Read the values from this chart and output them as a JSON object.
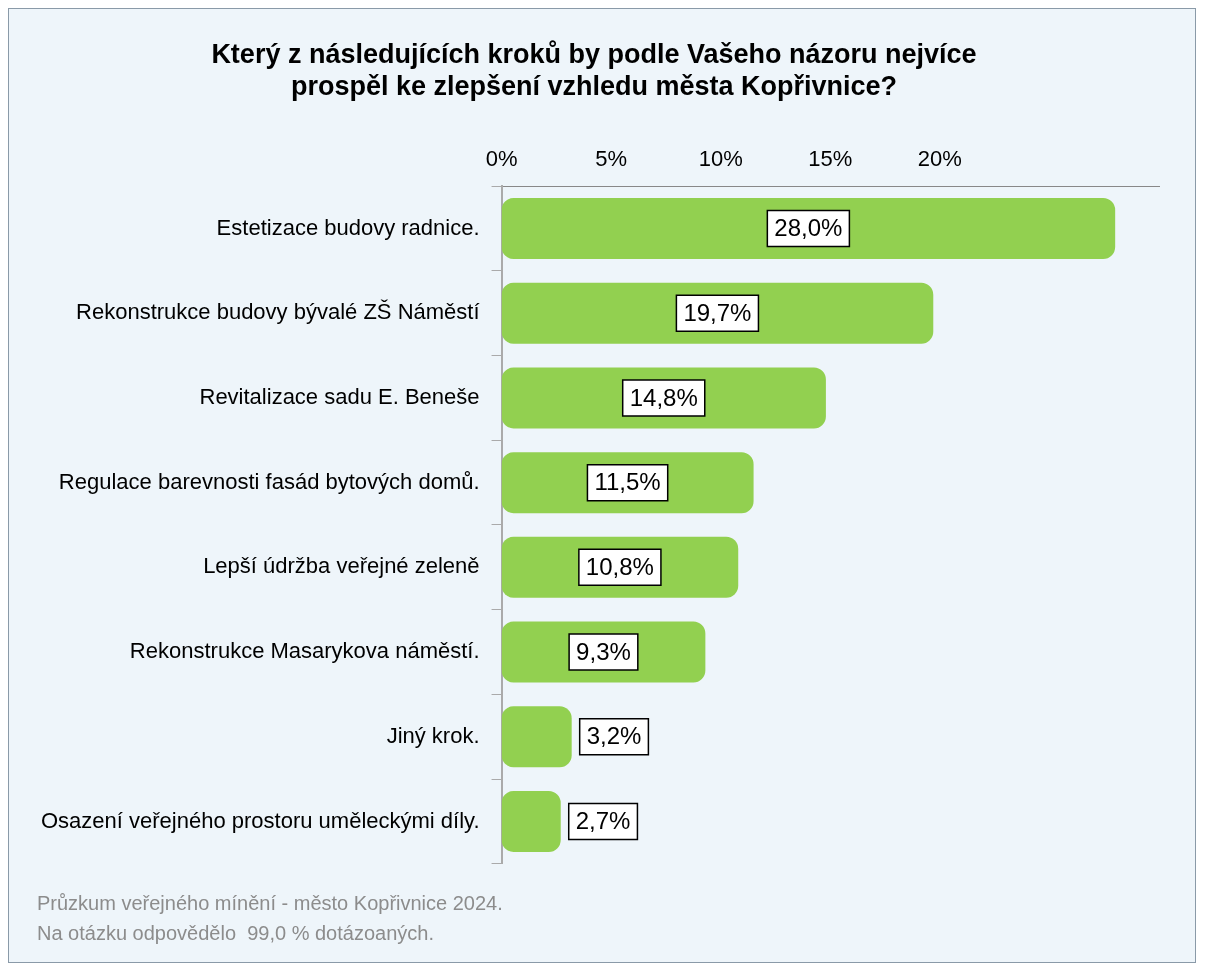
{
  "chart_data": {
    "type": "bar",
    "orientation": "horizontal",
    "title": [
      "Který z následujících kroků by podle Vašeho názoru nejvíce",
      "prospěl ke zlepšení vzhledu města Kopřivnice?"
    ],
    "categories": [
      "Estetizace budovy radnice.",
      "Rekonstrukce budovy bývalé ZŠ Náměstí",
      "Revitalizace sadu E. Beneše",
      "Regulace barevnosti fasád bytových domů.",
      "Lepší údržba veřejné zeleně",
      "Rekonstrukce Masarykova náměstí.",
      "Jiný krok.",
      "Osazení veřejného prostoru uměleckými díly."
    ],
    "values": [
      28.0,
      19.7,
      14.8,
      11.5,
      10.8,
      9.3,
      3.2,
      2.7
    ],
    "value_labels": [
      "28,0%",
      "19,7%",
      "14,8%",
      "11,5%",
      "10,8%",
      "9,3%",
      "3,2%",
      "2,7%"
    ],
    "color": "#92d050",
    "xlim": [
      0,
      30
    ],
    "xticks": [
      {
        "value": 0,
        "label": "0%"
      },
      {
        "value": 5,
        "label": "5%"
      },
      {
        "value": 10,
        "label": "10%"
      },
      {
        "value": 15,
        "label": "15%"
      },
      {
        "value": 20,
        "label": "20%"
      }
    ],
    "grid": false,
    "legend": false,
    "annotations": [
      "Průzkum veřejného mínění - město Kopřivnice 2024.",
      "Na otázku odpovědělo  99,0 % dotázoaných."
    ]
  }
}
